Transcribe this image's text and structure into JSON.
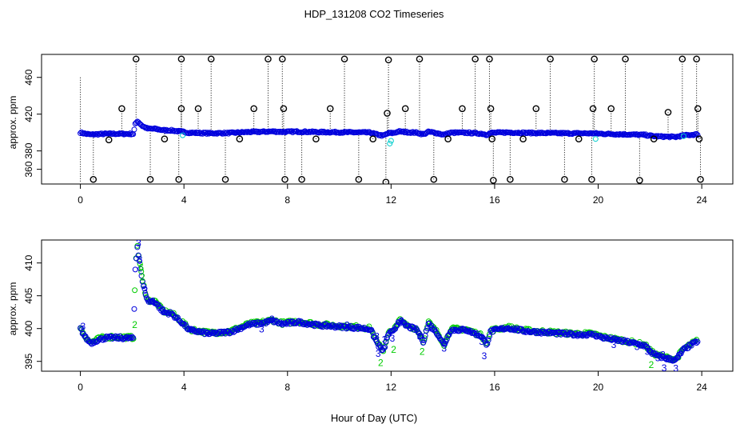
{
  "title": "HDP_131208  CO2 Timeseries",
  "xlabel": "Hour of Day (UTC)",
  "colors": {
    "outlier": "#000000",
    "series_blue": "#0000dd",
    "series_green": "#00cc00",
    "series_cyan": "#00cccc"
  },
  "chart_data": [
    {
      "type": "scatter",
      "ylabel": "approx. ppm",
      "xlim": [
        -1.5,
        25.2
      ],
      "ylim": [
        344,
        485
      ],
      "xticks": [
        0,
        4,
        8,
        12,
        16,
        20,
        24
      ],
      "xtick_labels": [
        "0",
        "4",
        "8",
        "12",
        "16",
        "20",
        "24"
      ],
      "yticks": [
        360,
        380,
        420,
        460
      ],
      "ytick_labels": [
        "360",
        "380",
        "420",
        "460"
      ],
      "outliers": [
        {
          "x": 0.5,
          "y": 349
        },
        {
          "x": 1.1,
          "y": 392
        },
        {
          "x": 1.6,
          "y": 426
        },
        {
          "x": 2.15,
          "y": 480
        },
        {
          "x": 2.7,
          "y": 349
        },
        {
          "x": 3.25,
          "y": 393
        },
        {
          "x": 3.8,
          "y": 349
        },
        {
          "x": 3.9,
          "y": 426
        },
        {
          "x": 3.9,
          "y": 480
        },
        {
          "x": 4.55,
          "y": 426
        },
        {
          "x": 5.05,
          "y": 480
        },
        {
          "x": 5.6,
          "y": 349
        },
        {
          "x": 6.15,
          "y": 393
        },
        {
          "x": 6.7,
          "y": 426
        },
        {
          "x": 7.25,
          "y": 480
        },
        {
          "x": 7.8,
          "y": 480
        },
        {
          "x": 7.85,
          "y": 426
        },
        {
          "x": 7.9,
          "y": 349
        },
        {
          "x": 8.55,
          "y": 349
        },
        {
          "x": 9.1,
          "y": 393
        },
        {
          "x": 9.65,
          "y": 426
        },
        {
          "x": 10.2,
          "y": 480
        },
        {
          "x": 10.75,
          "y": 349
        },
        {
          "x": 11.3,
          "y": 393
        },
        {
          "x": 11.8,
          "y": 346
        },
        {
          "x": 11.85,
          "y": 421
        },
        {
          "x": 11.9,
          "y": 479
        },
        {
          "x": 12.55,
          "y": 426
        },
        {
          "x": 13.1,
          "y": 480
        },
        {
          "x": 13.65,
          "y": 349
        },
        {
          "x": 14.2,
          "y": 393
        },
        {
          "x": 14.75,
          "y": 426
        },
        {
          "x": 15.25,
          "y": 480
        },
        {
          "x": 15.8,
          "y": 480
        },
        {
          "x": 15.85,
          "y": 426
        },
        {
          "x": 15.9,
          "y": 393
        },
        {
          "x": 15.95,
          "y": 348
        },
        {
          "x": 16.6,
          "y": 349
        },
        {
          "x": 17.1,
          "y": 393
        },
        {
          "x": 17.6,
          "y": 426
        },
        {
          "x": 18.15,
          "y": 480
        },
        {
          "x": 18.7,
          "y": 349
        },
        {
          "x": 19.25,
          "y": 393
        },
        {
          "x": 19.75,
          "y": 349
        },
        {
          "x": 19.8,
          "y": 426
        },
        {
          "x": 19.85,
          "y": 480
        },
        {
          "x": 20.5,
          "y": 426
        },
        {
          "x": 21.05,
          "y": 480
        },
        {
          "x": 21.6,
          "y": 348
        },
        {
          "x": 22.15,
          "y": 393
        },
        {
          "x": 22.7,
          "y": 422
        },
        {
          "x": 23.25,
          "y": 480
        },
        {
          "x": 23.8,
          "y": 480
        },
        {
          "x": 23.85,
          "y": 426
        },
        {
          "x": 23.9,
          "y": 393
        },
        {
          "x": 23.95,
          "y": 349
        }
      ],
      "series_profile": [
        [
          0.0,
          400.0
        ],
        [
          0.2,
          398.6
        ],
        [
          0.4,
          397.8
        ],
        [
          0.7,
          398.3
        ],
        [
          1.0,
          398.6
        ],
        [
          1.5,
          398.6
        ],
        [
          2.05,
          398.5
        ],
        [
          2.12,
          409.0
        ],
        [
          2.2,
          412.5
        ],
        [
          2.4,
          407.0
        ],
        [
          2.6,
          404.2
        ],
        [
          2.9,
          404.0
        ],
        [
          3.2,
          402.5
        ],
        [
          3.5,
          402.3
        ],
        [
          3.9,
          401.0
        ],
        [
          4.2,
          399.8
        ],
        [
          5.0,
          399.2
        ],
        [
          5.8,
          399.5
        ],
        [
          6.5,
          400.6
        ],
        [
          7.0,
          400.8
        ],
        [
          7.4,
          401.2
        ],
        [
          7.8,
          400.7
        ],
        [
          8.4,
          401.0
        ],
        [
          9.2,
          400.5
        ],
        [
          10.0,
          400.3
        ],
        [
          10.8,
          400.1
        ],
        [
          11.2,
          399.9
        ],
        [
          11.5,
          397.5
        ],
        [
          11.7,
          396.5
        ],
        [
          11.9,
          399.3
        ],
        [
          12.1,
          399.5
        ],
        [
          12.3,
          401.2
        ],
        [
          12.6,
          400.4
        ],
        [
          13.0,
          399.8
        ],
        [
          13.25,
          398.0
        ],
        [
          13.45,
          400.8
        ],
        [
          13.8,
          399.2
        ],
        [
          14.05,
          397.5
        ],
        [
          14.3,
          399.8
        ],
        [
          14.9,
          399.8
        ],
        [
          15.5,
          398.8
        ],
        [
          15.7,
          397.6
        ],
        [
          15.85,
          399.6
        ],
        [
          16.5,
          400.1
        ],
        [
          17.2,
          399.6
        ],
        [
          18.0,
          399.4
        ],
        [
          19.0,
          399.1
        ],
        [
          19.8,
          399.1
        ],
        [
          20.2,
          398.6
        ],
        [
          21.2,
          397.9
        ],
        [
          21.8,
          397.4
        ],
        [
          22.1,
          396.2
        ],
        [
          22.3,
          395.8
        ],
        [
          22.7,
          395.4
        ],
        [
          23.0,
          395.2
        ],
        [
          23.3,
          396.8
        ],
        [
          23.8,
          398.0
        ]
      ]
    },
    {
      "type": "scatter",
      "ylabel": "approx. ppm",
      "xlim": [
        -1.5,
        25.2
      ],
      "ylim": [
        393.5,
        413.5
      ],
      "xticks": [
        0,
        4,
        8,
        12,
        16,
        20,
        24
      ],
      "xtick_labels": [
        "0",
        "4",
        "8",
        "12",
        "16",
        "20",
        "24"
      ],
      "yticks": [
        395,
        400,
        405,
        410
      ],
      "ytick_labels": [
        "395",
        "400",
        "405",
        "410"
      ],
      "digit_labels": [
        {
          "text": "3",
          "x": 0.1,
          "y": 400.3,
          "color": "#0000dd"
        },
        {
          "text": "3",
          "x": 2.25,
          "y": 413.0,
          "color": "#0000dd"
        },
        {
          "text": "3",
          "x": 2.3,
          "y": 410.5,
          "color": "#0000dd"
        },
        {
          "text": "6",
          "x": 2.35,
          "y": 409.3,
          "color": "#00cc00"
        },
        {
          "text": "2",
          "x": 2.4,
          "y": 407.8,
          "color": "#00cc00"
        },
        {
          "text": "3",
          "x": 2.5,
          "y": 405.8,
          "color": "#0000dd"
        },
        {
          "text": "3",
          "x": 2.8,
          "y": 404.2,
          "color": "#0000dd"
        },
        {
          "text": "3",
          "x": 3.2,
          "y": 402.8,
          "color": "#0000dd"
        },
        {
          "text": "2",
          "x": 2.1,
          "y": 400.6,
          "color": "#00cc00"
        },
        {
          "text": "3",
          "x": 4.3,
          "y": 399.8,
          "color": "#0000dd"
        },
        {
          "text": "3",
          "x": 4.9,
          "y": 399.3,
          "color": "#0000dd"
        },
        {
          "text": "3",
          "x": 7.0,
          "y": 399.9,
          "color": "#0000dd"
        },
        {
          "text": "3",
          "x": 7.4,
          "y": 401.4,
          "color": "#0000dd"
        },
        {
          "text": "3",
          "x": 10.3,
          "y": 400.5,
          "color": "#0000dd"
        },
        {
          "text": "3",
          "x": 11.45,
          "y": 398.8,
          "color": "#0000dd"
        },
        {
          "text": "3",
          "x": 11.5,
          "y": 396.2,
          "color": "#0000dd"
        },
        {
          "text": "2",
          "x": 11.6,
          "y": 394.8,
          "color": "#00cc00"
        },
        {
          "text": "3",
          "x": 11.75,
          "y": 398.3,
          "color": "#0000dd"
        },
        {
          "text": "2",
          "x": 12.1,
          "y": 396.8,
          "color": "#00cc00"
        },
        {
          "text": "3",
          "x": 12.05,
          "y": 398.5,
          "color": "#0000dd"
        },
        {
          "text": "3",
          "x": 12.4,
          "y": 401.2,
          "color": "#0000dd"
        },
        {
          "text": "3",
          "x": 13.1,
          "y": 398.8,
          "color": "#0000dd"
        },
        {
          "text": "2",
          "x": 13.2,
          "y": 396.5,
          "color": "#00cc00"
        },
        {
          "text": "3",
          "x": 13.55,
          "y": 400.0,
          "color": "#0000dd"
        },
        {
          "text": "3",
          "x": 14.05,
          "y": 397.0,
          "color": "#0000dd"
        },
        {
          "text": "3",
          "x": 15.0,
          "y": 399.6,
          "color": "#0000dd"
        },
        {
          "text": "3",
          "x": 15.5,
          "y": 398.0,
          "color": "#0000dd"
        },
        {
          "text": "3",
          "x": 15.6,
          "y": 395.8,
          "color": "#0000dd"
        },
        {
          "text": "3",
          "x": 20.6,
          "y": 397.5,
          "color": "#0000dd"
        },
        {
          "text": "3",
          "x": 21.5,
          "y": 397.2,
          "color": "#0000dd"
        },
        {
          "text": "3",
          "x": 21.9,
          "y": 396.5,
          "color": "#0000dd"
        },
        {
          "text": "2",
          "x": 22.05,
          "y": 394.5,
          "color": "#00cc00"
        },
        {
          "text": "3",
          "x": 22.3,
          "y": 395.5,
          "color": "#0000dd"
        },
        {
          "text": "3",
          "x": 22.5,
          "y": 396.0,
          "color": "#0000dd"
        },
        {
          "text": "3",
          "x": 22.55,
          "y": 394.0,
          "color": "#0000dd"
        },
        {
          "text": "3",
          "x": 22.7,
          "y": 395.3,
          "color": "#0000dd"
        },
        {
          "text": "3",
          "x": 23.0,
          "y": 393.9,
          "color": "#0000dd"
        },
        {
          "text": "3",
          "x": 23.1,
          "y": 395.8,
          "color": "#0000dd"
        }
      ]
    }
  ]
}
